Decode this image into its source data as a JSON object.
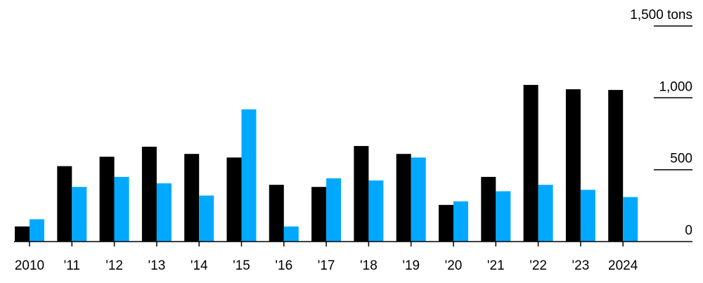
{
  "chart_data": {
    "type": "bar",
    "categories": [
      "2010",
      "'11",
      "'12",
      "'13",
      "'14",
      "'15",
      "'16",
      "'17",
      "'18",
      "'19",
      "'20",
      "'21",
      "'22",
      "'23",
      "2024"
    ],
    "series": [
      {
        "color": "#000000",
        "values": [
          105,
          525,
          590,
          660,
          610,
          585,
          395,
          380,
          665,
          610,
          255,
          450,
          1090,
          1060,
          1055
        ]
      },
      {
        "color": "#00a9ff",
        "values": [
          155,
          380,
          450,
          405,
          320,
          920,
          105,
          440,
          425,
          585,
          280,
          350,
          395,
          360,
          310
        ]
      }
    ],
    "ylim": [
      0,
      1500
    ],
    "yticks": [
      {
        "value": 0,
        "label": "0"
      },
      {
        "value": 500,
        "label": "500"
      },
      {
        "value": 1000,
        "label": "1,000"
      },
      {
        "value": 1500,
        "label": "1,500 tons"
      }
    ],
    "grid": false,
    "legend": "none"
  }
}
